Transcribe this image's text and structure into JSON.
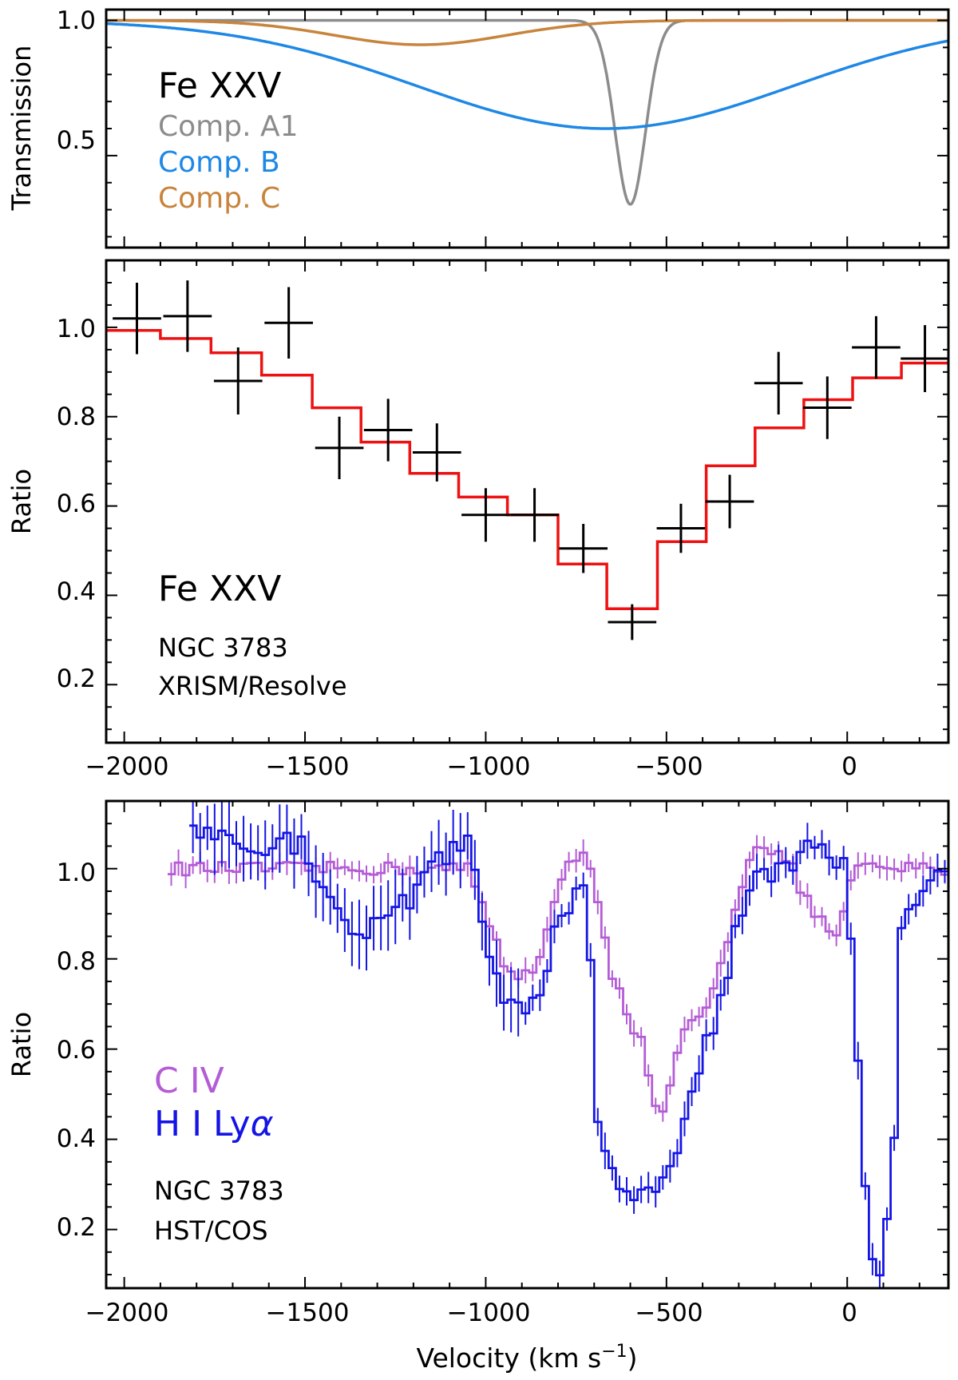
{
  "colors": {
    "axis": "#000000",
    "compA1": "#8c8c8c",
    "compB": "#1e88e5",
    "compC": "#c8843c",
    "model": "#ee1111",
    "data": "#000000",
    "civ": "#b45cd6",
    "hlya": "#1414e6"
  },
  "chart_data": [
    {
      "type": "line",
      "title": "",
      "ylabel": "Transmission",
      "xlabel": "",
      "xlim": [
        -2050,
        280
      ],
      "ylim": [
        0.16,
        1.04
      ],
      "xticks": [
        -2000,
        -1500,
        -1000,
        -500,
        0
      ],
      "yticks": [
        0.5,
        1.0
      ],
      "ytick_labels": [
        "0.5",
        "1.0"
      ],
      "label_main": "Fe XXV",
      "legend": [
        "Comp. A1",
        "Comp. B",
        "Comp. C"
      ],
      "legend_placement": "top-left",
      "series": [
        {
          "name": "Comp. A1",
          "center": -600,
          "depth": 0.68,
          "width": 42
        },
        {
          "name": "Comp. B",
          "center": -670,
          "depth": 0.4,
          "width": 520
        },
        {
          "name": "Comp. C",
          "center": -1180,
          "depth": 0.09,
          "width": 240
        }
      ]
    },
    {
      "type": "line",
      "title": "",
      "ylabel": "Ratio",
      "xlabel": "",
      "xlim": [
        -2050,
        280
      ],
      "ylim": [
        0.07,
        1.15
      ],
      "xticks": [
        -2000,
        -1500,
        -1000,
        -500,
        0
      ],
      "xtick_labels": [
        "−2000",
        "−1500",
        "−1000",
        "−500",
        "0"
      ],
      "yticks": [
        0.2,
        0.4,
        0.6,
        0.8,
        1.0
      ],
      "ytick_labels": [
        "0.2",
        "0.4",
        "0.6",
        "0.8",
        "1.0"
      ],
      "label_main": "Fe XXV",
      "label_object": "NGC 3783",
      "label_instrument": "XRISM/Resolve",
      "data_points": {
        "name": "XRISM data",
        "x": [
          -1965,
          -1825,
          -1685,
          -1545,
          -1405,
          -1270,
          -1135,
          -1000,
          -865,
          -730,
          -595,
          -460,
          -325,
          -190,
          -55,
          80,
          215
        ],
        "y": [
          1.02,
          1.025,
          0.88,
          1.01,
          0.73,
          0.77,
          0.72,
          0.58,
          0.58,
          0.505,
          0.34,
          0.55,
          0.61,
          0.875,
          0.82,
          0.955,
          0.93
        ],
        "xerr": 67,
        "yerr": [
          0.08,
          0.08,
          0.075,
          0.08,
          0.07,
          0.07,
          0.065,
          0.06,
          0.06,
          0.055,
          0.04,
          0.055,
          0.06,
          0.07,
          0.07,
          0.07,
          0.075
        ]
      },
      "model_step": {
        "name": "model",
        "edges": [
          -2050,
          -1900,
          -1760,
          -1620,
          -1480,
          -1345,
          -1210,
          -1075,
          -940,
          -800,
          -665,
          -525,
          -390,
          -255,
          -120,
          15,
          150,
          280
        ],
        "values": [
          0.993,
          0.975,
          0.943,
          0.893,
          0.82,
          0.743,
          0.673,
          0.62,
          0.58,
          0.47,
          0.37,
          0.52,
          0.69,
          0.775,
          0.838,
          0.887,
          0.92
        ]
      }
    },
    {
      "type": "line",
      "title": "",
      "ylabel": "Ratio",
      "xlabel": "Velocity (km s−1)",
      "xlabel_main": "Velocity (km s",
      "xlabel_exp": "−1",
      "xlabel_close": ")",
      "xlim": [
        -2050,
        280
      ],
      "ylim": [
        0.07,
        1.15
      ],
      "xticks": [
        -2000,
        -1500,
        -1000,
        -500,
        0
      ],
      "xtick_labels": [
        "−2000",
        "−1500",
        "−1000",
        "−500",
        "0"
      ],
      "yticks": [
        0.2,
        0.4,
        0.6,
        0.8,
        1.0
      ],
      "ytick_labels": [
        "0.2",
        "0.4",
        "0.6",
        "0.8",
        "1.0"
      ],
      "legend": [
        "C IV",
        "H I Lyα"
      ],
      "label_hi": "H I Ly",
      "label_alpha": "α",
      "label_object": "NGC 3783",
      "label_instrument": "HST/COS",
      "series": [
        {
          "name": "C IV",
          "x_start": -1880,
          "x_end": 280,
          "x_step": 20,
          "y_anchor_x": [
            -1880,
            -1100,
            -1050,
            -1000,
            -950,
            -900,
            -850,
            -800,
            -760,
            -720,
            -700,
            -650,
            -600,
            -560,
            -540,
            -500,
            -480,
            -450,
            -400,
            -350,
            -300,
            -250,
            -200,
            -150,
            -120,
            -100,
            -60,
            -30,
            0,
            20,
            280
          ],
          "y_anchor_y": [
            1.0,
            1.0,
            1.0,
            0.9,
            0.79,
            0.76,
            0.8,
            0.95,
            1.02,
            1.03,
            0.98,
            0.77,
            0.66,
            0.6,
            0.46,
            0.47,
            0.55,
            0.64,
            0.67,
            0.78,
            0.95,
            1.06,
            1.04,
            1.0,
            0.93,
            0.92,
            0.87,
            0.85,
            0.93,
            1.0,
            1.0
          ],
          "noise": 0.015
        },
        {
          "name": "H I Lyα",
          "x_start": -1820,
          "x_end": 280,
          "x_step": 20,
          "y_anchor_x": [
            -1820,
            -1500,
            -1420,
            -1350,
            -1260,
            -1200,
            -1150,
            -1050,
            -1000,
            -950,
            -900,
            -850,
            -800,
            -750,
            -720,
            -700,
            -690,
            -650,
            -620,
            -600,
            -580,
            -540,
            -500,
            -470,
            -450,
            -420,
            -350,
            -300,
            -250,
            -200,
            -120,
            -60,
            0,
            20,
            40,
            60,
            100,
            130,
            140,
            160,
            200,
            280
          ],
          "y_anchor_y": [
            1.08,
            1.05,
            0.9,
            0.86,
            0.88,
            0.95,
            1.0,
            1.05,
            0.85,
            0.72,
            0.7,
            0.74,
            0.88,
            0.95,
            0.93,
            0.7,
            0.44,
            0.34,
            0.28,
            0.27,
            0.29,
            0.3,
            0.31,
            0.34,
            0.42,
            0.55,
            0.7,
            0.88,
            0.98,
            1.0,
            1.04,
            1.05,
            1.0,
            0.7,
            0.41,
            0.13,
            0.11,
            0.38,
            0.8,
            0.9,
            0.95,
            0.99
          ],
          "noise": 0.03
        }
      ]
    }
  ]
}
